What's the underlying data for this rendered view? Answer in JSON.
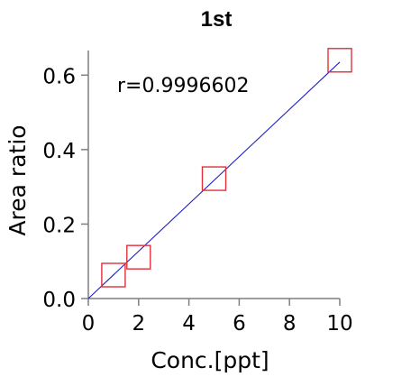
{
  "chart_data": {
    "type": "scatter",
    "title": "1st",
    "xlabel": "Conc.[ppt]",
    "ylabel": "Area ratio",
    "xlim": [
      0,
      10
    ],
    "ylim": [
      0,
      0.7
    ],
    "xticks": [
      0,
      2,
      4,
      6,
      8,
      10
    ],
    "xtick_labels": [
      "0",
      "2",
      "4",
      "6",
      "8",
      "10"
    ],
    "yticks": [
      0.0,
      0.2,
      0.4,
      0.6
    ],
    "ytick_labels": [
      "0.0",
      "0.2",
      "0.4",
      "0.6"
    ],
    "grid": false,
    "annotation": "r=0.9996602",
    "series": [
      {
        "marker": "open-square",
        "color": "#e0303a",
        "x": [
          1.0,
          2.0,
          5.0,
          10.0
        ],
        "y": [
          0.063,
          0.111,
          0.322,
          0.64
        ]
      }
    ],
    "fit_line": {
      "color": "#2020c8",
      "x": [
        0,
        10
      ],
      "y": [
        0.0,
        0.635
      ]
    }
  }
}
